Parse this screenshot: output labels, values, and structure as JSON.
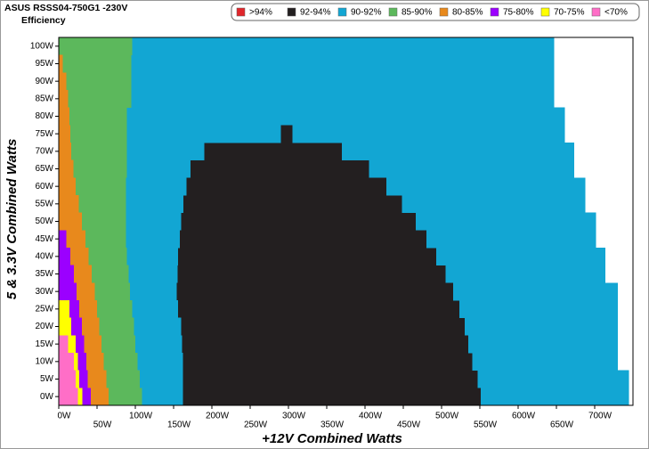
{
  "chart_data": {
    "type": "region-map",
    "title": "ASUS RSSS04-750G1 -230V",
    "subtitle": "Efficiency",
    "x_label": "+12V Combined Watts",
    "y_label": "5 & 3.3V Combined Watts",
    "xlim": [
      0,
      750
    ],
    "ylim": [
      -2.5,
      102.5
    ],
    "xticks": [
      {
        "value": 0,
        "label": "0W"
      },
      {
        "value": 50,
        "label": "50W"
      },
      {
        "value": 100,
        "label": "100W"
      },
      {
        "value": 150,
        "label": "150W"
      },
      {
        "value": 200,
        "label": "200W"
      },
      {
        "value": 250,
        "label": "250W"
      },
      {
        "value": 300,
        "label": "300W"
      },
      {
        "value": 350,
        "label": "350W"
      },
      {
        "value": 400,
        "label": "400W"
      },
      {
        "value": 450,
        "label": "450W"
      },
      {
        "value": 500,
        "label": "500W"
      },
      {
        "value": 550,
        "label": "550W"
      },
      {
        "value": 600,
        "label": "600W"
      },
      {
        "value": 650,
        "label": "650W"
      },
      {
        "value": 700,
        "label": "700W"
      }
    ],
    "yticks": [
      {
        "value": 0,
        "label": "0W"
      },
      {
        "value": 5,
        "label": "5W"
      },
      {
        "value": 10,
        "label": "10W"
      },
      {
        "value": 15,
        "label": "15W"
      },
      {
        "value": 20,
        "label": "20W"
      },
      {
        "value": 25,
        "label": "25W"
      },
      {
        "value": 30,
        "label": "30W"
      },
      {
        "value": 35,
        "label": "35W"
      },
      {
        "value": 40,
        "label": "40W"
      },
      {
        "value": 45,
        "label": "45W"
      },
      {
        "value": 50,
        "label": "50W"
      },
      {
        "value": 55,
        "label": "55W"
      },
      {
        "value": 60,
        "label": "60W"
      },
      {
        "value": 65,
        "label": "65W"
      },
      {
        "value": 70,
        "label": "70W"
      },
      {
        "value": 75,
        "label": "75W"
      },
      {
        "value": 80,
        "label": "80W"
      },
      {
        "value": 85,
        "label": "85W"
      },
      {
        "value": 90,
        "label": "90W"
      },
      {
        "value": 95,
        "label": "95W"
      },
      {
        "value": 100,
        "label": "100W"
      }
    ],
    "legend": "top-right",
    "series": [
      {
        "name": ">94%",
        "color": "#e0262b",
        "values": []
      },
      {
        "name": "92-94%",
        "color": "#231f20",
        "values": [
          [
            0,
            162,
            551
          ],
          [
            5,
            162,
            547
          ],
          [
            10,
            162,
            540
          ],
          [
            15,
            161,
            535
          ],
          [
            20,
            160,
            530
          ],
          [
            25,
            156,
            523
          ],
          [
            30,
            154,
            515
          ],
          [
            35,
            155,
            505
          ],
          [
            40,
            156,
            493
          ],
          [
            45,
            158,
            480
          ],
          [
            50,
            160,
            466
          ],
          [
            55,
            163,
            448
          ],
          [
            60,
            167,
            428
          ],
          [
            65,
            172,
            405
          ],
          [
            70,
            190,
            370
          ],
          [
            75,
            290,
            305
          ]
        ]
      },
      {
        "name": "90-92%",
        "color": "#12a6d3",
        "values": [
          [
            0,
            109,
            162
          ],
          [
            5,
            106,
            162
          ],
          [
            10,
            103,
            162
          ],
          [
            15,
            100,
            161
          ],
          [
            20,
            98,
            160
          ],
          [
            25,
            96,
            156
          ],
          [
            30,
            93,
            154
          ],
          [
            35,
            91,
            155
          ],
          [
            40,
            89,
            156
          ],
          [
            45,
            88,
            158
          ],
          [
            50,
            88,
            160
          ],
          [
            55,
            88,
            163
          ],
          [
            60,
            88,
            167
          ],
          [
            65,
            89,
            172
          ],
          [
            70,
            89,
            190
          ],
          [
            75,
            89,
            290
          ],
          [
            0,
            551,
            745
          ],
          [
            5,
            547,
            745
          ],
          [
            10,
            540,
            730
          ],
          [
            15,
            535,
            730
          ],
          [
            20,
            530,
            730
          ],
          [
            25,
            523,
            730
          ],
          [
            30,
            515,
            730
          ],
          [
            35,
            505,
            714
          ],
          [
            40,
            493,
            714
          ],
          [
            45,
            480,
            702
          ],
          [
            50,
            466,
            702
          ],
          [
            55,
            448,
            688
          ],
          [
            60,
            428,
            688
          ],
          [
            65,
            405,
            673
          ],
          [
            70,
            370,
            673
          ],
          [
            75,
            305,
            661
          ],
          [
            80,
            89,
            661
          ],
          [
            85,
            95,
            647
          ],
          [
            90,
            95,
            647
          ],
          [
            95,
            95,
            647
          ],
          [
            100,
            96,
            647
          ]
        ]
      },
      {
        "name": "85-90%",
        "color": "#5cb85c",
        "values": [
          [
            0,
            65,
            109
          ],
          [
            5,
            62,
            106
          ],
          [
            10,
            59,
            103
          ],
          [
            15,
            56,
            100
          ],
          [
            20,
            53,
            98
          ],
          [
            25,
            50,
            96
          ],
          [
            30,
            47,
            93
          ],
          [
            35,
            43,
            91
          ],
          [
            40,
            39,
            89
          ],
          [
            45,
            35,
            88
          ],
          [
            50,
            30,
            88
          ],
          [
            55,
            26,
            88
          ],
          [
            60,
            22,
            88
          ],
          [
            65,
            19,
            89
          ],
          [
            70,
            16,
            89
          ],
          [
            75,
            15,
            89
          ],
          [
            80,
            14,
            89
          ],
          [
            85,
            12,
            95
          ],
          [
            90,
            10,
            95
          ],
          [
            95,
            5,
            95
          ],
          [
            100,
            0,
            96
          ]
        ]
      },
      {
        "name": "80-85%",
        "color": "#e8891c",
        "values": [
          [
            0,
            42,
            65
          ],
          [
            5,
            38,
            62
          ],
          [
            10,
            36,
            59
          ],
          [
            15,
            33,
            56
          ],
          [
            20,
            30,
            53
          ],
          [
            25,
            27,
            50
          ],
          [
            30,
            23,
            47
          ],
          [
            35,
            20,
            43
          ],
          [
            40,
            15,
            39
          ],
          [
            45,
            10,
            35
          ],
          [
            50,
            0,
            30
          ],
          [
            55,
            0,
            26
          ],
          [
            60,
            0,
            22
          ],
          [
            65,
            0,
            19
          ],
          [
            70,
            0,
            16
          ],
          [
            75,
            0,
            15
          ],
          [
            80,
            0,
            14
          ],
          [
            85,
            0,
            12
          ],
          [
            90,
            0,
            10
          ],
          [
            95,
            0,
            5
          ]
        ]
      },
      {
        "name": "75-80%",
        "color": "#9b00ff",
        "values": [
          [
            0,
            31,
            42
          ],
          [
            5,
            27,
            38
          ],
          [
            10,
            25,
            36
          ],
          [
            15,
            22,
            33
          ],
          [
            20,
            16,
            30
          ],
          [
            25,
            14,
            27
          ],
          [
            30,
            0,
            23
          ],
          [
            35,
            0,
            20
          ],
          [
            40,
            0,
            15
          ],
          [
            45,
            0,
            10
          ]
        ]
      },
      {
        "name": "70-75%",
        "color": "#ffff00",
        "values": [
          [
            0,
            25,
            31
          ],
          [
            5,
            22,
            27
          ],
          [
            10,
            20,
            25
          ],
          [
            15,
            12,
            22
          ],
          [
            20,
            0,
            16
          ],
          [
            25,
            0,
            14
          ]
        ]
      },
      {
        "name": "<70%",
        "color": "#ff6ec7",
        "values": [
          [
            0,
            0,
            25
          ],
          [
            5,
            0,
            22
          ],
          [
            10,
            0,
            20
          ],
          [
            15,
            0,
            12
          ]
        ]
      }
    ]
  }
}
